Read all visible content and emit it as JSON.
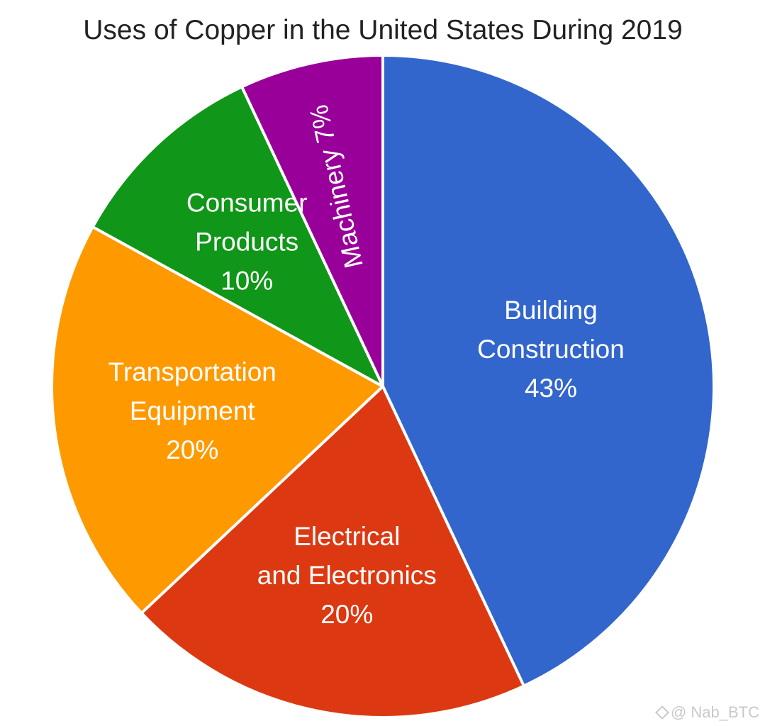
{
  "chart_data": {
    "type": "pie",
    "title": "Uses of Copper in the United States During 2019",
    "slices": [
      {
        "lines": [
          "Building",
          "Construction",
          "43%"
        ],
        "value": 43,
        "color": "#3366cc"
      },
      {
        "lines": [
          "Electrical",
          "and Electronics",
          "20%"
        ],
        "value": 20,
        "color": "#dc3912"
      },
      {
        "lines": [
          "Transportation",
          "Equipment",
          "20%"
        ],
        "value": 20,
        "color": "#ff9900"
      },
      {
        "lines": [
          "Consumer",
          "Products",
          "10%"
        ],
        "value": 10,
        "color": "#109618"
      },
      {
        "lines": [
          "Machinery 7%"
        ],
        "value": 7,
        "color": "#990099"
      }
    ]
  },
  "watermark": {
    "text": "@ Nab_BTC",
    "icon": "diamond-logo-icon"
  }
}
